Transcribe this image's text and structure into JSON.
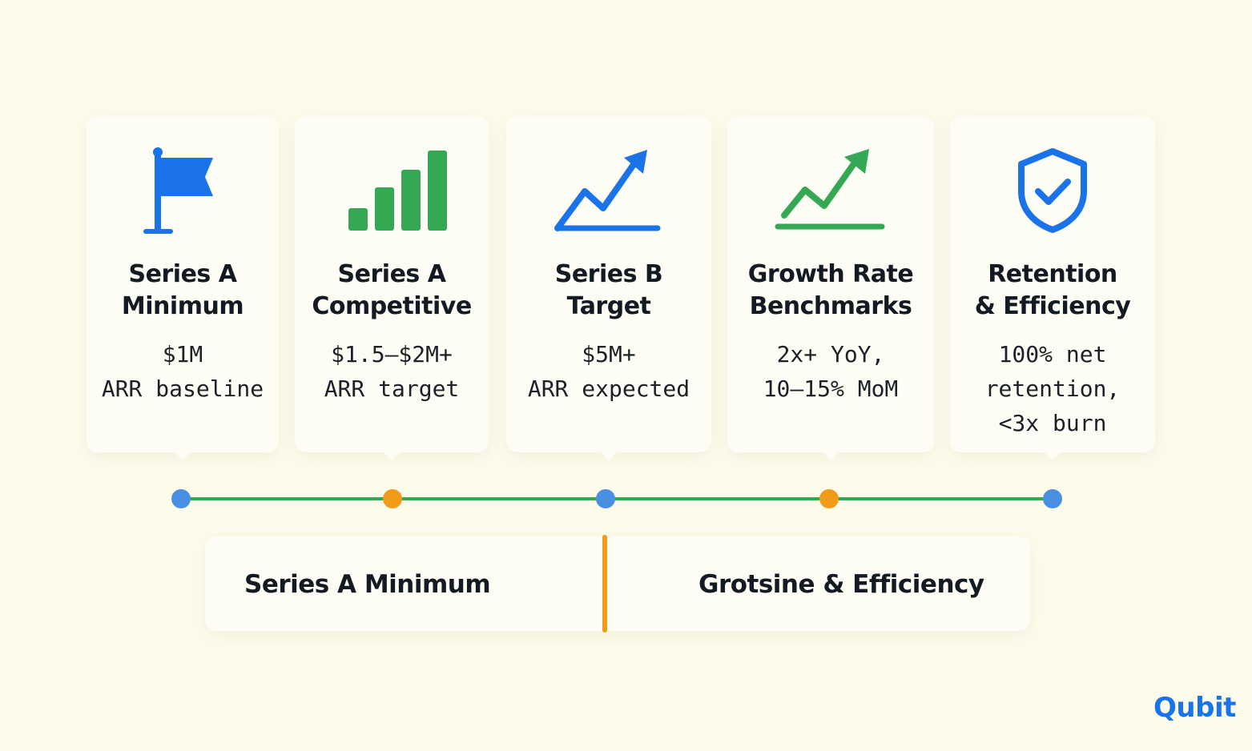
{
  "colors": {
    "background": "#fdfbea",
    "blue": "#1a73e8",
    "green": "#34a853",
    "orange": "#f29a1a",
    "dot_blue": "#4a90e2"
  },
  "cards": [
    {
      "icon": "flag-icon",
      "title_line1": "Series A",
      "title_line2": "Minimum",
      "desc_line1": "$1M",
      "desc_line2": "ARR baseline",
      "desc_line3": ""
    },
    {
      "icon": "bar-chart-icon",
      "title_line1": "Series A",
      "title_line2": "Competitive",
      "desc_line1": "$1.5–$2M+",
      "desc_line2": "ARR target",
      "desc_line3": ""
    },
    {
      "icon": "trending-up-icon",
      "title_line1": "Series B",
      "title_line2": "Target",
      "desc_line1": "$5M+",
      "desc_line2": "ARR expected",
      "desc_line3": ""
    },
    {
      "icon": "trending-up-icon",
      "title_line1": "Growth Rate",
      "title_line2": "Benchmarks",
      "desc_line1": "2x+ YoY,",
      "desc_line2": "10–15% MoM",
      "desc_line3": ""
    },
    {
      "icon": "shield-check-icon",
      "title_line1": "Retention",
      "title_line2": "& Efficiency",
      "desc_line1": "100% net",
      "desc_line2": "retention,",
      "desc_line3": "<3x burn"
    }
  ],
  "timeline": {
    "dots": [
      "blue",
      "orange",
      "blue",
      "orange",
      "blue"
    ]
  },
  "bottom": {
    "left_label": "Series A Minimum",
    "right_label": "Grotsine & Efficiency"
  },
  "logo": {
    "text": "Qubit"
  }
}
